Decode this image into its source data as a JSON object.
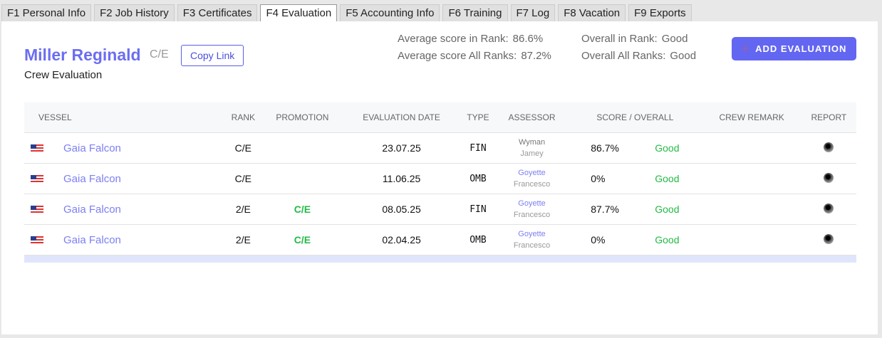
{
  "tabs": [
    "F1 Personal Info",
    "F2 Job History",
    "F3 Certificates",
    "F4 Evaluation",
    "F5 Accounting Info",
    "F6 Training",
    "F7 Log",
    "F8 Vacation",
    "F9 Exports"
  ],
  "active_tab": "F4 Evaluation",
  "header": {
    "name": "Miller Reginald",
    "rank": "C/E",
    "copy_link": "Copy Link",
    "subtitle": "Crew Evaluation",
    "avg_rank_label": "Average score in Rank:",
    "avg_rank": "86.6%",
    "avg_all_label": "Average score All Ranks:",
    "avg_all": "87.2%",
    "overall_rank_label": "Overall in Rank:",
    "overall_rank": "Good",
    "overall_all_label": "Overall All Ranks:",
    "overall_all": "Good",
    "add_button": "ADD EVALUATION"
  },
  "columns": [
    "VESSEL",
    "RANK",
    "PROMOTION",
    "EVALUATION DATE",
    "TYPE",
    "ASSESSOR",
    "SCORE / OVERALL",
    "CREW REMARK",
    "REPORT"
  ],
  "rows": [
    {
      "vessel": "Gaia Falcon",
      "rank": "C/E",
      "promotion": "",
      "date": "23.07.25",
      "type": "FIN",
      "assessor_last": "Wyman",
      "assessor_first": "Jamey",
      "score": "86.7%",
      "overall": "Good",
      "remark": ""
    },
    {
      "vessel": "Gaia Falcon",
      "rank": "C/E",
      "promotion": "",
      "date": "11.06.25",
      "type": "OMB",
      "assessor_last": "Goyette",
      "assessor_first": "Francesco",
      "score": "0%",
      "overall": "Good",
      "remark": ""
    },
    {
      "vessel": "Gaia Falcon",
      "rank": "2/E",
      "promotion": "C/E",
      "date": "08.05.25",
      "type": "FIN",
      "assessor_last": "Goyette",
      "assessor_first": "Francesco",
      "score": "87.7%",
      "overall": "Good",
      "remark": ""
    },
    {
      "vessel": "Gaia Falcon",
      "rank": "2/E",
      "promotion": "C/E",
      "date": "02.04.25",
      "type": "OMB",
      "assessor_last": "Goyette",
      "assessor_first": "Francesco",
      "score": "0%",
      "overall": "Good",
      "remark": ""
    }
  ]
}
